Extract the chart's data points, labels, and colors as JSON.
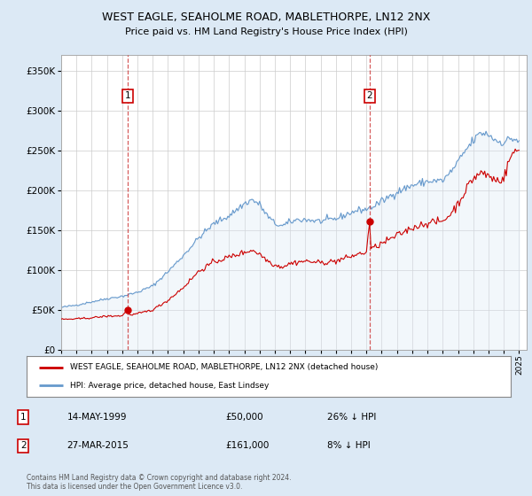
{
  "title": "WEST EAGLE, SEAHOLME ROAD, MABLETHORPE, LN12 2NX",
  "subtitle": "Price paid vs. HM Land Registry's House Price Index (HPI)",
  "legend_property": "WEST EAGLE, SEAHOLME ROAD, MABLETHORPE, LN12 2NX (detached house)",
  "legend_hpi": "HPI: Average price, detached house, East Lindsey",
  "footer": "Contains HM Land Registry data © Crown copyright and database right 2024.\nThis data is licensed under the Open Government Licence v3.0.",
  "annotations": [
    {
      "num": "1",
      "date": "14-MAY-1999",
      "price": "£50,000",
      "hpi_rel": "26% ↓ HPI",
      "x_year": 1999.37,
      "y_val": 50000
    },
    {
      "num": "2",
      "date": "27-MAR-2015",
      "price": "£161,000",
      "hpi_rel": "8% ↓ HPI",
      "x_year": 2015.21,
      "y_val": 161000
    }
  ],
  "property_color": "#cc0000",
  "hpi_color": "#6699cc",
  "hpi_fill_color": "#dce9f5",
  "background_color": "#dce9f5",
  "plot_bg_color": "#ffffff",
  "ylim": [
    0,
    370000
  ],
  "xlim_start": 1995.0,
  "xlim_end": 2025.5,
  "yticks": [
    0,
    50000,
    100000,
    150000,
    200000,
    250000,
    300000,
    350000
  ],
  "xticks": [
    1995,
    1996,
    1997,
    1998,
    1999,
    2000,
    2001,
    2002,
    2003,
    2004,
    2005,
    2006,
    2007,
    2008,
    2009,
    2010,
    2011,
    2012,
    2013,
    2014,
    2015,
    2016,
    2017,
    2018,
    2019,
    2020,
    2021,
    2022,
    2023,
    2024,
    2025
  ]
}
